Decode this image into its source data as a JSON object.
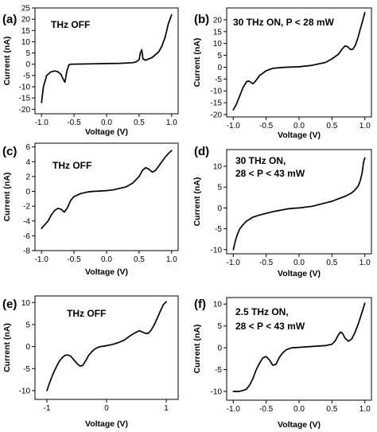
{
  "chart_data": [
    {
      "panel": "(a)",
      "type": "line",
      "annotation": [
        "THz OFF"
      ],
      "xlabel": "Voltage (V)",
      "ylabel": "Current (nA)",
      "xlim": [
        -1.1,
        1.1
      ],
      "ylim": [
        -22,
        25
      ],
      "grid": false,
      "xticks": [
        "-1.0",
        "-0.5",
        "0.0",
        "0.5",
        "1.0"
      ],
      "yticks": [
        "-20",
        "-15",
        "-10",
        "-5",
        "0",
        "5",
        "10",
        "15",
        "20",
        "25"
      ],
      "x": [
        -1.0,
        -0.97,
        -0.92,
        -0.86,
        -0.8,
        -0.75,
        -0.7,
        -0.67,
        -0.64,
        -0.61,
        -0.58,
        -0.55,
        -0.4,
        -0.2,
        0.0,
        0.2,
        0.4,
        0.45,
        0.5,
        0.52,
        0.54,
        0.56,
        0.6,
        0.7,
        0.8,
        0.85,
        0.9,
        0.95,
        1.0
      ],
      "values": [
        -17,
        -10,
        -5,
        -3.5,
        -3,
        -3.3,
        -4.5,
        -6.5,
        -8,
        -3,
        -0.3,
        0,
        0.1,
        0.2,
        0.3,
        0.4,
        0.7,
        1,
        2,
        5,
        6.5,
        2.3,
        1.8,
        3,
        5.5,
        8,
        12,
        18,
        22
      ]
    },
    {
      "panel": "(b)",
      "type": "line",
      "annotation": [
        "30 THz ON, P < 28 mW"
      ],
      "xlabel": "Voltage (V)",
      "ylabel": "Current (nA)",
      "xlim": [
        -1.1,
        1.1
      ],
      "ylim": [
        -21,
        25
      ],
      "grid": false,
      "xticks": [
        "-1.0",
        "-0.5",
        "0.0",
        "0.5",
        "1.0"
      ],
      "yticks": [
        "-20",
        "-15",
        "-10",
        "-5",
        "0",
        "5",
        "10",
        "15",
        "20"
      ],
      "x": [
        -1.0,
        -0.95,
        -0.9,
        -0.85,
        -0.8,
        -0.77,
        -0.74,
        -0.7,
        -0.65,
        -0.6,
        -0.5,
        -0.4,
        -0.3,
        -0.2,
        0.0,
        0.2,
        0.4,
        0.5,
        0.6,
        0.65,
        0.7,
        0.74,
        0.78,
        0.82,
        0.86,
        0.9,
        0.95,
        1.0
      ],
      "values": [
        -18,
        -15.5,
        -12,
        -8.5,
        -6.2,
        -5.8,
        -6.3,
        -7,
        -5.5,
        -3.5,
        -1.5,
        -0.5,
        -0.2,
        0,
        0.2,
        0.8,
        2,
        3.5,
        5.5,
        7.5,
        9,
        8.6,
        7.5,
        7.6,
        9.5,
        13,
        18,
        23
      ]
    },
    {
      "panel": "(c)",
      "type": "line",
      "annotation": [
        "THz OFF"
      ],
      "xlabel": "Voltage (V)",
      "ylabel": "Current (nA)",
      "xlim": [
        -1.1,
        1.1
      ],
      "ylim": [
        -8,
        6.5
      ],
      "grid": false,
      "xticks": [
        "-1.0",
        "-0.5",
        "0.0",
        "0.5",
        "1.0"
      ],
      "yticks": [
        "-8",
        "-6",
        "-4",
        "-2",
        "0",
        "2",
        "4",
        "6"
      ],
      "x": [
        -1.0,
        -0.95,
        -0.9,
        -0.85,
        -0.8,
        -0.75,
        -0.7,
        -0.65,
        -0.6,
        -0.55,
        -0.5,
        -0.45,
        -0.4,
        -0.35,
        -0.3,
        -0.2,
        -0.1,
        0.0,
        0.1,
        0.2,
        0.3,
        0.4,
        0.5,
        0.55,
        0.6,
        0.65,
        0.7,
        0.75,
        0.8,
        0.85,
        0.9,
        0.95,
        1.0
      ],
      "values": [
        -5,
        -4.5,
        -4,
        -3.2,
        -2.6,
        -2.3,
        -2.4,
        -2.8,
        -2.2,
        -1.2,
        -0.7,
        -0.5,
        -0.3,
        -0.2,
        -0.1,
        0,
        0.05,
        0.1,
        0.2,
        0.4,
        0.6,
        1.1,
        2,
        2.8,
        3.2,
        3,
        2.6,
        2.8,
        3.4,
        4,
        4.6,
        5.1,
        5.5
      ]
    },
    {
      "panel": "(d)",
      "type": "line",
      "annotation": [
        "30 THz ON,",
        "28 < P < 43 mW"
      ],
      "xlabel": "Voltage (V)",
      "ylabel": "Current (nA)",
      "xlim": [
        -1.1,
        1.1
      ],
      "ylim": [
        -11,
        14
      ],
      "grid": false,
      "xticks": [
        "-1.0",
        "-0.5",
        "0.0",
        "0.5",
        "1.0"
      ],
      "yticks": [
        "-10",
        "-5",
        "0",
        "5",
        "10"
      ],
      "x": [
        -1.0,
        -0.97,
        -0.94,
        -0.9,
        -0.85,
        -0.8,
        -0.7,
        -0.6,
        -0.5,
        -0.4,
        -0.3,
        -0.2,
        -0.1,
        0.0,
        0.1,
        0.2,
        0.3,
        0.4,
        0.5,
        0.6,
        0.7,
        0.8,
        0.85,
        0.9,
        0.93,
        0.96,
        0.98,
        1.0
      ],
      "values": [
        -10,
        -8,
        -6.5,
        -5,
        -4,
        -3.2,
        -2.2,
        -1.7,
        -1.3,
        -0.9,
        -0.6,
        -0.3,
        -0.1,
        0,
        0.2,
        0.4,
        0.8,
        1.2,
        1.6,
        2.2,
        2.8,
        3.6,
        4.3,
        5.3,
        6.5,
        8.5,
        11,
        12
      ]
    },
    {
      "panel": "(e)",
      "type": "line",
      "annotation": [
        "THz OFF"
      ],
      "xlabel": "Voltage (V)",
      "ylabel": "Current (nA)",
      "xlim": [
        -1.2,
        1.2
      ],
      "ylim": [
        -12,
        11.5
      ],
      "grid": false,
      "xticks": [
        "-1",
        "0",
        "1"
      ],
      "yticks": [
        "-10",
        "-5",
        "0",
        "5",
        "10"
      ],
      "x": [
        -1.0,
        -0.95,
        -0.9,
        -0.85,
        -0.8,
        -0.75,
        -0.7,
        -0.65,
        -0.6,
        -0.55,
        -0.5,
        -0.45,
        -0.4,
        -0.35,
        -0.3,
        -0.25,
        -0.2,
        -0.15,
        -0.1,
        -0.05,
        0.0,
        0.1,
        0.2,
        0.3,
        0.4,
        0.5,
        0.55,
        0.6,
        0.65,
        0.7,
        0.75,
        0.8,
        0.85,
        0.9,
        0.95,
        1.0
      ],
      "values": [
        -10,
        -8,
        -6.3,
        -4.8,
        -3.5,
        -2.6,
        -2,
        -1.9,
        -2.2,
        -3,
        -3.8,
        -4.4,
        -4.3,
        -3.2,
        -2,
        -1.2,
        -0.6,
        -0.2,
        0,
        0.1,
        0.2,
        0.5,
        0.9,
        1.5,
        2.5,
        3.3,
        3.6,
        3.3,
        3,
        3,
        3.8,
        5,
        6.5,
        8,
        9.5,
        10.2
      ]
    },
    {
      "panel": "(f)",
      "type": "line",
      "annotation": [
        "2.5 THz ON,",
        "28 < P < 43 mW"
      ],
      "xlabel": "Voltage (V)",
      "ylabel": "Current (nA)",
      "xlim": [
        -1.1,
        1.1
      ],
      "ylim": [
        -12,
        11.5
      ],
      "grid": false,
      "xticks": [
        "-1.0",
        "-0.5",
        "0.0",
        "0.5",
        "1.0"
      ],
      "yticks": [
        "-10",
        "-5",
        "0",
        "5",
        "10"
      ],
      "x": [
        -1.0,
        -0.9,
        -0.8,
        -0.75,
        -0.7,
        -0.65,
        -0.6,
        -0.55,
        -0.5,
        -0.45,
        -0.4,
        -0.35,
        -0.3,
        -0.25,
        -0.2,
        -0.15,
        -0.1,
        0.0,
        0.1,
        0.2,
        0.3,
        0.4,
        0.5,
        0.55,
        0.6,
        0.63,
        0.66,
        0.7,
        0.75,
        0.8,
        0.85,
        0.9,
        0.95,
        1.0
      ],
      "values": [
        -10,
        -10,
        -9.5,
        -8.5,
        -7,
        -5,
        -3.5,
        -2.3,
        -2,
        -2.8,
        -4,
        -3.8,
        -2.2,
        -1.2,
        -0.5,
        -0.2,
        0,
        0.1,
        0.2,
        0.3,
        0.4,
        0.5,
        0.8,
        1.6,
        3,
        3.6,
        3.3,
        2.2,
        1.5,
        2,
        3.5,
        5.5,
        7.8,
        10.2
      ]
    }
  ]
}
